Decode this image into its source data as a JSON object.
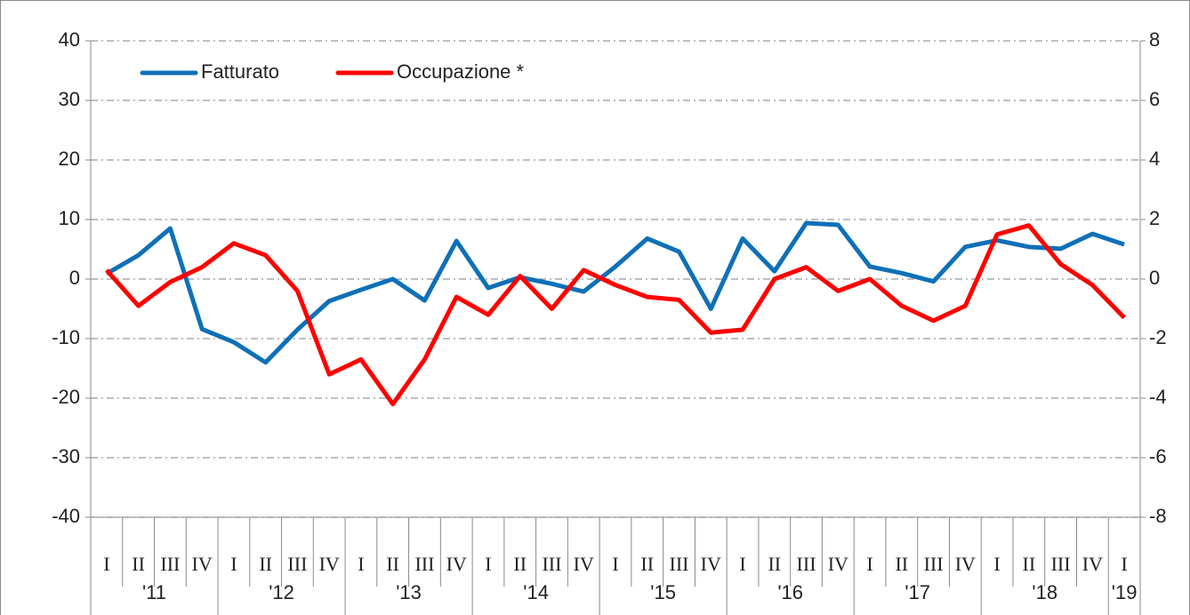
{
  "chart_data": {
    "type": "line",
    "categories": [
      "I",
      "II",
      "III",
      "IV",
      "I",
      "II",
      "III",
      "IV",
      "I",
      "II",
      "III",
      "IV",
      "I",
      "II",
      "III",
      "IV",
      "I",
      "II",
      "III",
      "IV",
      "I",
      "II",
      "III",
      "IV",
      "I",
      "II",
      "III",
      "IV",
      "I",
      "II",
      "III",
      "IV",
      "I"
    ],
    "years": [
      "'11",
      "'12",
      "'13",
      "'14",
      "'15",
      "'16",
      "'17",
      "'18",
      "'19"
    ],
    "series": [
      {
        "name": "Fatturato",
        "color": "#0f70b7",
        "axis": "y",
        "values": [
          0.9,
          4,
          8.5,
          -8.4,
          -10.6,
          -14,
          -8.5,
          -3.7,
          -1.8,
          0,
          -3.6,
          6.4,
          -1.5,
          0.3,
          -0.8,
          -2.1,
          2.1,
          6.8,
          4.6,
          -5,
          6.8,
          1.3,
          9.4,
          9.1,
          2.1,
          1,
          -0.4,
          5.4,
          6.5,
          5.4,
          5.1,
          7.6,
          5.8
        ]
      },
      {
        "name": "Occupazione *",
        "color": "#ff0000",
        "axis": "y2",
        "values": [
          0.3,
          -0.9,
          -0.1,
          0.4,
          1.2,
          0.8,
          -0.4,
          -3.2,
          -2.7,
          -4.2,
          -2.7,
          -0.6,
          -1.2,
          0.1,
          -1,
          0.3,
          -0.2,
          -0.6,
          -0.7,
          -1.8,
          -1.7,
          0,
          0.4,
          -0.4,
          0,
          -0.9,
          -1.4,
          -0.9,
          1.5,
          1.8,
          0.5,
          -0.2,
          -1.3
        ]
      }
    ],
    "ylim": [
      -40,
      40
    ],
    "yticks": [
      -40,
      -30,
      -20,
      -10,
      0,
      10,
      20,
      30,
      40
    ],
    "y2lim": [
      -8,
      8
    ],
    "y2ticks": [
      -8,
      -6,
      -4,
      -2,
      0,
      2,
      4,
      6,
      8
    ],
    "grid": true,
    "legend": "top-left"
  }
}
